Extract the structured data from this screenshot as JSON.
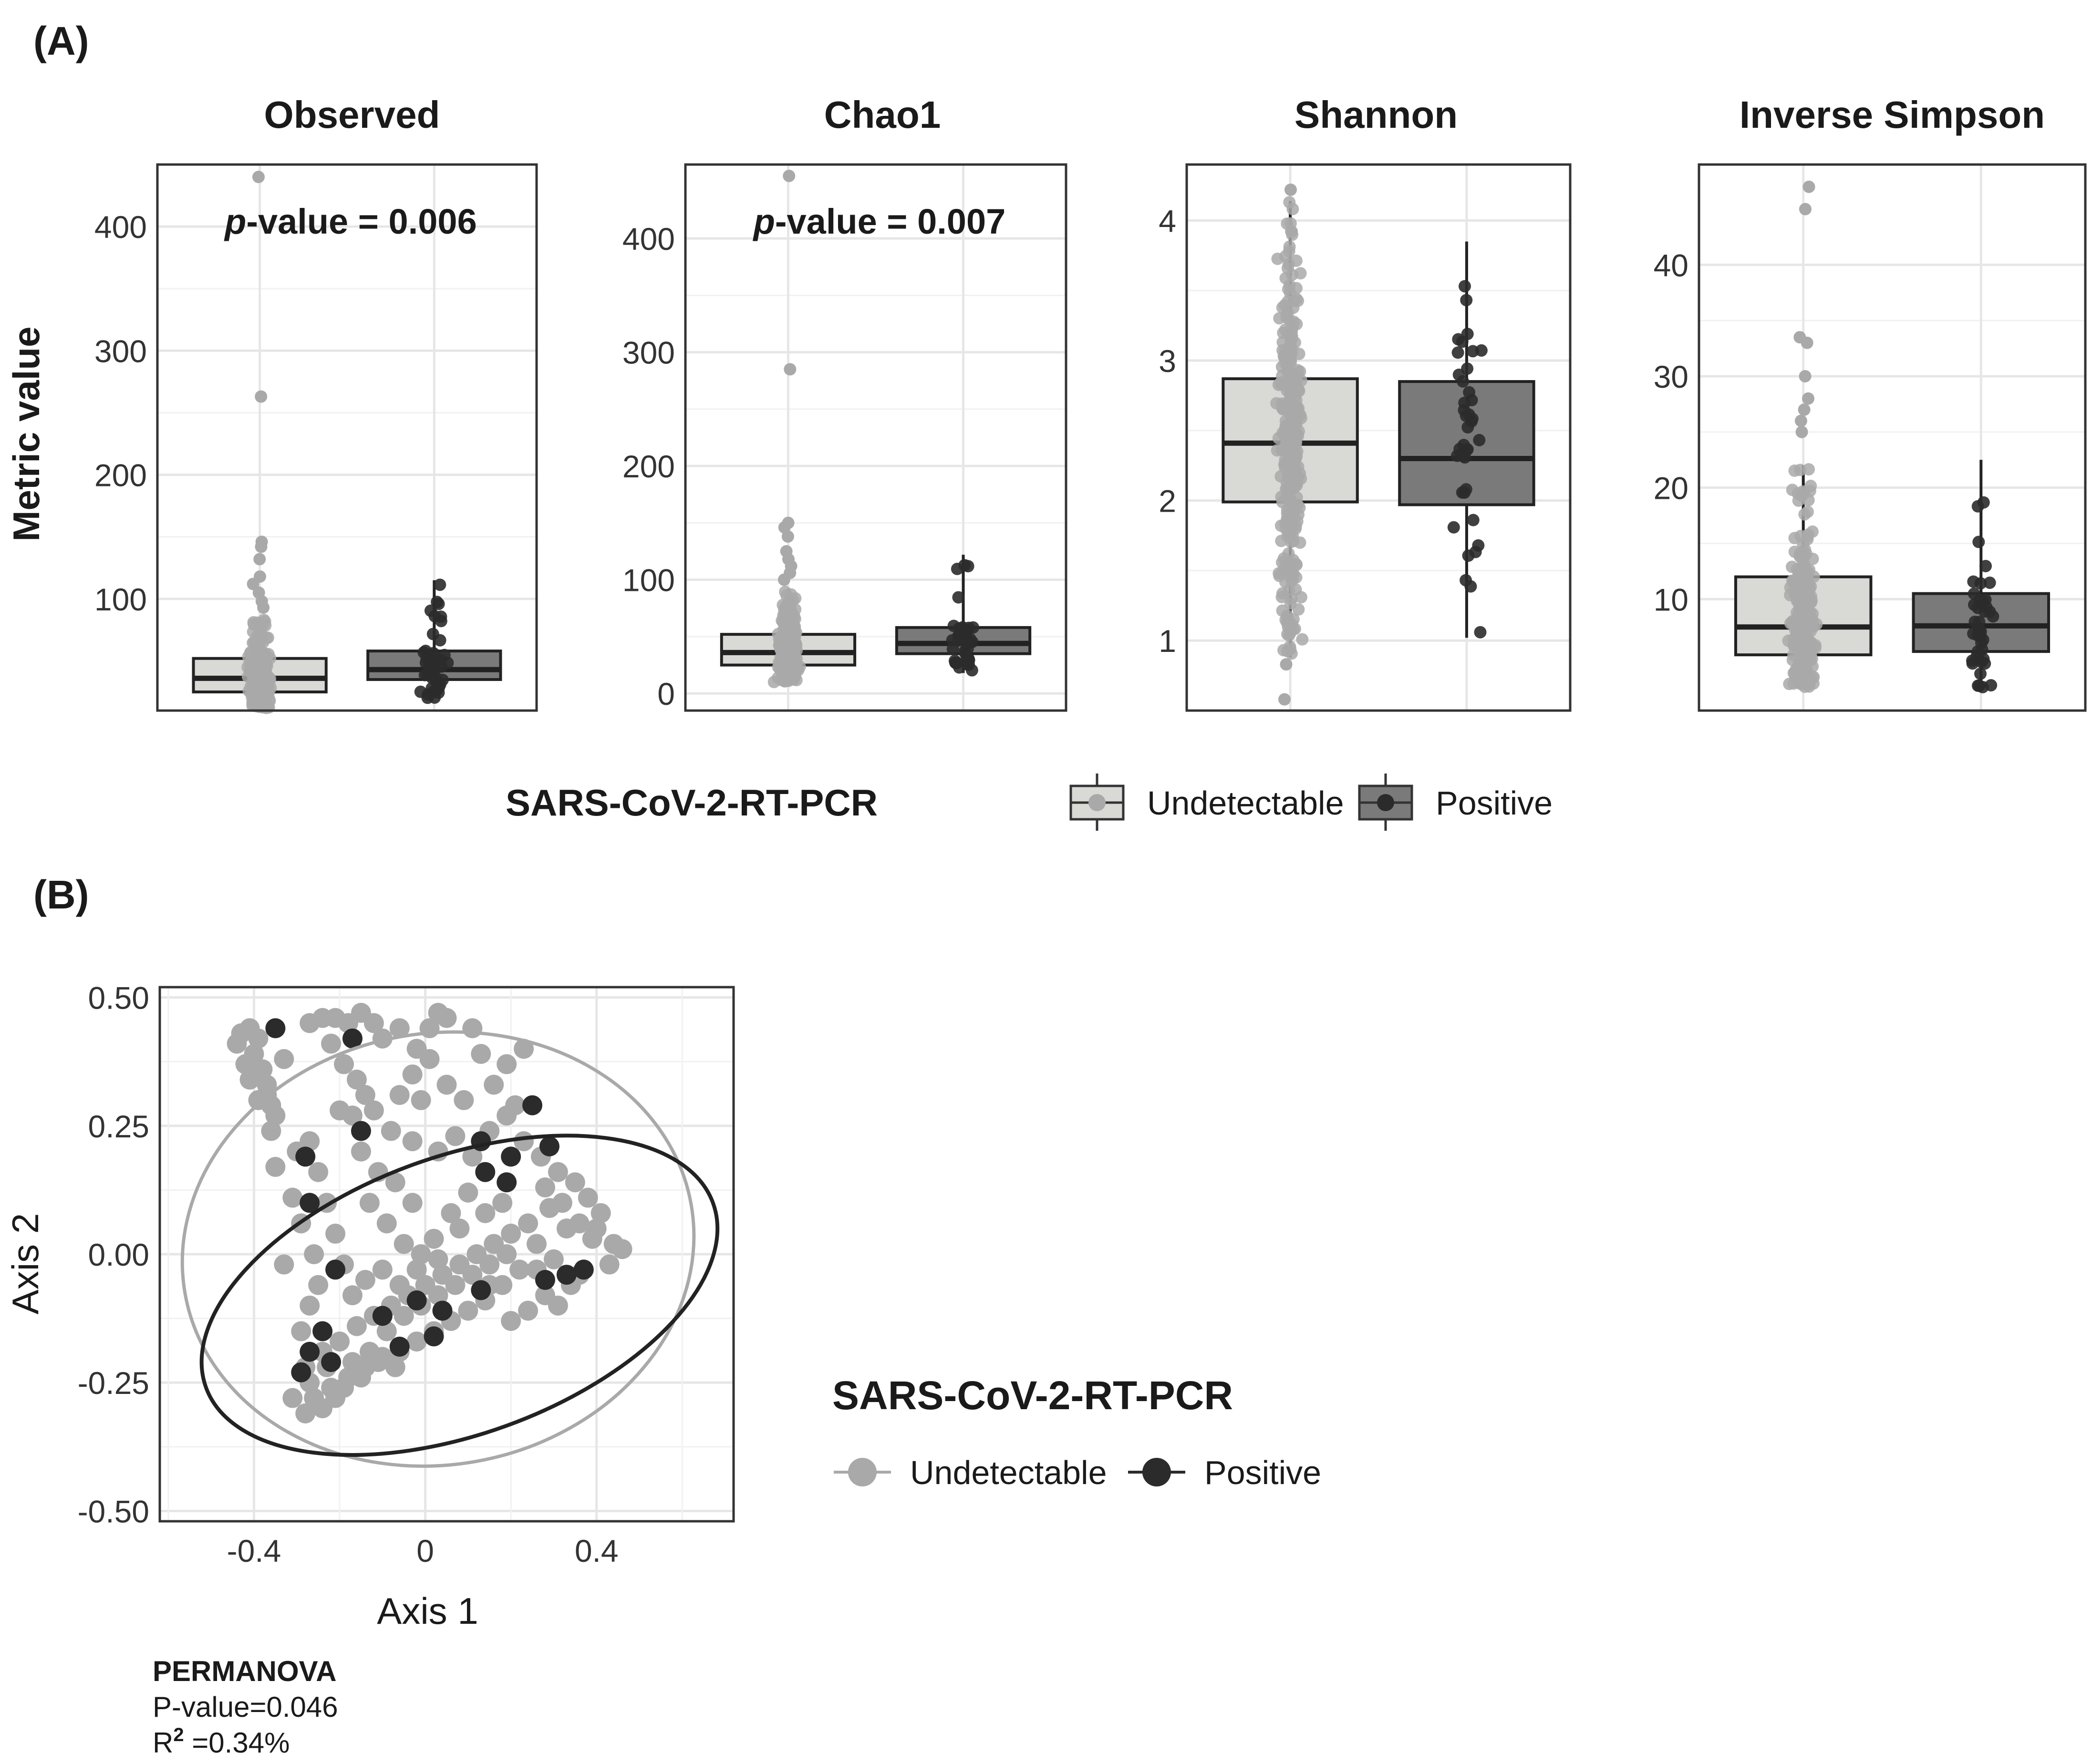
{
  "panel_labels": {
    "a": "(A)",
    "b": "(B)"
  },
  "colors": {
    "undetectable_fill": "#d9d9d6",
    "undetectable_point": "#a9a9a9",
    "positive_fill": "#7a7a7a",
    "positive_point": "#2b2b2b",
    "grid": "#e6e6e6",
    "frame": "#333333"
  },
  "legend_a": {
    "title": "SARS-CoV-2-RT-PCR",
    "items": [
      "Undetectable",
      "Positive"
    ]
  },
  "legend_b": {
    "title": "SARS-CoV-2-RT-PCR",
    "items": [
      "Undetectable",
      "Positive"
    ]
  },
  "permanova": {
    "title": "PERMANOVA",
    "pvalue": "P-value=0.046",
    "r2_base": "R",
    "r2_sup": "2",
    "r2_value": " =0.34%"
  },
  "chart_data": [
    {
      "type": "box",
      "title": "Observed",
      "ylabel": "Metric value",
      "annotation": {
        "italic": "p",
        "rest": "-value = 0.006"
      },
      "ylim": [
        10,
        450
      ],
      "yticks": [
        100,
        200,
        300,
        400
      ],
      "ytick_labels": [
        "100",
        "200",
        "300",
        "400"
      ],
      "groups": [
        {
          "name": "Undetectable",
          "q1": 25,
          "median": 36,
          "q3": 52,
          "whisker_low": 12,
          "whisker_high": 85,
          "n_points": 260,
          "outliers": [
            440,
            263,
            146,
            142,
            132,
            118,
            112,
            105,
            98,
            93
          ]
        },
        {
          "name": "Positive",
          "q1": 35,
          "median": 43,
          "q3": 58,
          "whisker_low": 20,
          "whisker_high": 115,
          "n_points": 40,
          "outliers": []
        }
      ]
    },
    {
      "type": "box",
      "title": "Chao1",
      "annotation": {
        "italic": "p",
        "rest": "-value = 0.007"
      },
      "ylim": [
        -15,
        465
      ],
      "yticks": [
        0,
        100,
        200,
        300,
        400
      ],
      "ytick_labels": [
        "0",
        "100",
        "200",
        "300",
        "400"
      ],
      "groups": [
        {
          "name": "Undetectable",
          "q1": 25,
          "median": 36,
          "q3": 52,
          "whisker_low": 10,
          "whisker_high": 92,
          "n_points": 260,
          "outliers": [
            455,
            285,
            150,
            146,
            138,
            125,
            118,
            112,
            106,
            100
          ]
        },
        {
          "name": "Positive",
          "q1": 35,
          "median": 44,
          "q3": 58,
          "whisker_low": 18,
          "whisker_high": 122,
          "n_points": 40,
          "outliers": []
        }
      ]
    },
    {
      "type": "box",
      "title": "Shannon",
      "ylim": [
        0.5,
        4.4
      ],
      "yticks": [
        1,
        2,
        3,
        4
      ],
      "ytick_labels": [
        "1",
        "2",
        "3",
        "4"
      ],
      "groups": [
        {
          "name": "Undetectable",
          "q1": 1.99,
          "median": 2.41,
          "q3": 2.87,
          "whisker_low": 0.88,
          "whisker_high": 4.14,
          "n_points": 320,
          "outliers": [
            0.83,
            0.58,
            4.22
          ]
        },
        {
          "name": "Positive",
          "q1": 1.97,
          "median": 2.3,
          "q3": 2.85,
          "whisker_low": 1.02,
          "whisker_high": 3.85,
          "n_points": 40,
          "outliers": []
        }
      ]
    },
    {
      "type": "box",
      "title": "Inverse Simpson",
      "ylim": [
        0,
        49
      ],
      "yticks": [
        10,
        20,
        30,
        40
      ],
      "ytick_labels": [
        "10",
        "20",
        "30",
        "40"
      ],
      "groups": [
        {
          "name": "Undetectable",
          "q1": 5,
          "median": 7.5,
          "q3": 12,
          "whisker_low": 2,
          "whisker_high": 22,
          "n_points": 250,
          "outliers": [
            47,
            45,
            33.5,
            33,
            30,
            28,
            27,
            26,
            25
          ]
        },
        {
          "name": "Positive",
          "q1": 5.3,
          "median": 7.6,
          "q3": 10.5,
          "whisker_low": 2,
          "whisker_high": 22.5,
          "n_points": 40,
          "outliers": []
        }
      ]
    },
    {
      "type": "scatter",
      "xlabel": "Axis 1",
      "ylabel": "Axis 2",
      "xlim": [
        -0.62,
        0.72
      ],
      "ylim": [
        -0.52,
        0.52
      ],
      "xticks": [
        -0.4,
        0,
        0.4
      ],
      "xtick_labels": [
        "-0.4",
        "0",
        "0.4"
      ],
      "yticks": [
        -0.5,
        -0.25,
        0,
        0.25,
        0.5
      ],
      "ytick_labels": [
        "-0.50",
        "-0.25",
        "0.00",
        "0.25",
        "0.50"
      ],
      "ellipses": [
        {
          "series": "Undetectable",
          "cx": 0.03,
          "cy": 0.01,
          "rx": 0.6,
          "ry": 0.42,
          "angle": 10
        },
        {
          "series": "Positive",
          "cx": 0.08,
          "cy": -0.08,
          "rx": 0.63,
          "ry": 0.27,
          "angle": 20
        }
      ],
      "series": [
        {
          "name": "Undetectable",
          "points": [
            [
              -0.43,
              0.43
            ],
            [
              -0.41,
              0.44
            ],
            [
              -0.39,
              0.42
            ],
            [
              -0.4,
              0.39
            ],
            [
              -0.38,
              0.36
            ],
            [
              -0.37,
              0.33
            ],
            [
              -0.36,
              0.29
            ],
            [
              -0.39,
              0.3
            ],
            [
              -0.42,
              0.37
            ],
            [
              -0.44,
              0.41
            ],
            [
              -0.35,
              0.27
            ],
            [
              -0.37,
              0.31
            ],
            [
              -0.41,
              0.34
            ],
            [
              -0.27,
              0.45
            ],
            [
              -0.24,
              0.46
            ],
            [
              -0.21,
              0.46
            ],
            [
              -0.18,
              0.45
            ],
            [
              -0.15,
              0.47
            ],
            [
              -0.12,
              0.45
            ],
            [
              -0.22,
              0.41
            ],
            [
              -0.19,
              0.37
            ],
            [
              -0.16,
              0.34
            ],
            [
              -0.14,
              0.31
            ],
            [
              -0.12,
              0.28
            ],
            [
              -0.17,
              0.27
            ],
            [
              -0.1,
              0.42
            ],
            [
              -0.06,
              0.44
            ],
            [
              -0.02,
              0.4
            ],
            [
              0.01,
              0.44
            ],
            [
              0.03,
              0.47
            ],
            [
              0.05,
              0.46
            ],
            [
              0.01,
              0.38
            ],
            [
              -0.03,
              0.35
            ],
            [
              0.11,
              0.44
            ],
            [
              0.13,
              0.39
            ],
            [
              0.19,
              0.37
            ],
            [
              0.23,
              0.4
            ],
            [
              0.16,
              0.33
            ],
            [
              0.21,
              0.29
            ],
            [
              -0.06,
              0.31
            ],
            [
              -0.01,
              0.3
            ],
            [
              -0.08,
              0.24
            ],
            [
              -0.03,
              0.22
            ],
            [
              0.03,
              0.2
            ],
            [
              0.07,
              0.23
            ],
            [
              0.11,
              0.19
            ],
            [
              0.15,
              0.24
            ],
            [
              0.19,
              0.27
            ],
            [
              0.23,
              0.22
            ],
            [
              0.27,
              0.19
            ],
            [
              0.31,
              0.16
            ],
            [
              0.35,
              0.14
            ],
            [
              0.38,
              0.11
            ],
            [
              0.41,
              0.08
            ],
            [
              0.39,
              0.03
            ],
            [
              0.44,
              0.02
            ],
            [
              0.46,
              0.01
            ],
            [
              0.43,
              -0.02
            ],
            [
              0.36,
              -0.04
            ],
            [
              0.33,
              0.05
            ],
            [
              0.29,
              0.09
            ],
            [
              0.26,
              0.02
            ],
            [
              0.22,
              -0.03
            ],
            [
              0.18,
              -0.06
            ],
            [
              0.14,
              -0.09
            ],
            [
              0.1,
              -0.11
            ],
            [
              0.06,
              -0.13
            ],
            [
              0.02,
              -0.15
            ],
            [
              -0.02,
              -0.17
            ],
            [
              -0.06,
              -0.19
            ],
            [
              -0.1,
              -0.2
            ],
            [
              -0.14,
              -0.22
            ],
            [
              -0.18,
              -0.24
            ],
            [
              -0.22,
              -0.26
            ],
            [
              -0.26,
              -0.28
            ],
            [
              -0.28,
              -0.22
            ],
            [
              -0.24,
              -0.19
            ],
            [
              -0.2,
              -0.17
            ],
            [
              -0.16,
              -0.14
            ],
            [
              -0.12,
              -0.12
            ],
            [
              -0.08,
              -0.1
            ],
            [
              -0.04,
              -0.08
            ],
            [
              0.0,
              -0.06
            ],
            [
              0.04,
              -0.04
            ],
            [
              0.08,
              -0.02
            ],
            [
              0.12,
              0.0
            ],
            [
              0.16,
              0.02
            ],
            [
              0.2,
              0.04
            ],
            [
              0.24,
              0.06
            ],
            [
              0.3,
              -0.01
            ],
            [
              0.34,
              -0.06
            ],
            [
              0.28,
              -0.08
            ],
            [
              0.24,
              -0.11
            ],
            [
              0.2,
              -0.13
            ],
            [
              -0.27,
              0.22
            ],
            [
              -0.25,
              0.16
            ],
            [
              -0.23,
              0.1
            ],
            [
              -0.21,
              0.04
            ],
            [
              -0.19,
              -0.02
            ],
            [
              -0.17,
              -0.08
            ],
            [
              -0.25,
              -0.06
            ],
            [
              -0.27,
              -0.1
            ],
            [
              -0.29,
              -0.15
            ],
            [
              -0.26,
              0.0
            ],
            [
              -0.29,
              0.06
            ],
            [
              -0.31,
              0.11
            ],
            [
              -0.35,
              0.17
            ],
            [
              -0.3,
              0.2
            ],
            [
              -0.33,
              -0.02
            ],
            [
              -0.31,
              -0.28
            ],
            [
              -0.28,
              -0.31
            ],
            [
              -0.24,
              -0.3
            ],
            [
              -0.27,
              -0.25
            ],
            [
              -0.21,
              -0.28
            ],
            [
              -0.17,
              -0.21
            ],
            [
              -0.13,
              -0.19
            ],
            [
              -0.09,
              -0.15
            ],
            [
              -0.05,
              -0.12
            ],
            [
              -0.01,
              -0.1
            ],
            [
              0.03,
              -0.08
            ],
            [
              0.07,
              -0.06
            ],
            [
              0.11,
              -0.04
            ],
            [
              0.15,
              -0.02
            ],
            [
              0.19,
              0.0
            ],
            [
              -0.13,
              0.1
            ],
            [
              -0.09,
              0.06
            ],
            [
              -0.05,
              0.02
            ],
            [
              -0.01,
              0.0
            ],
            [
              0.03,
              -0.01
            ],
            [
              0.08,
              0.05
            ],
            [
              -0.11,
              0.16
            ],
            [
              -0.07,
              0.14
            ],
            [
              -0.03,
              0.1
            ],
            [
              0.1,
              0.12
            ],
            [
              0.14,
              0.08
            ],
            [
              0.18,
              0.1
            ],
            [
              0.28,
              0.13
            ],
            [
              0.32,
              0.1
            ],
            [
              0.36,
              0.06
            ],
            [
              0.4,
              0.05
            ],
            [
              -0.14,
              -0.05
            ],
            [
              -0.1,
              -0.03
            ],
            [
              -0.06,
              -0.06
            ],
            [
              -0.02,
              -0.03
            ],
            [
              0.02,
              0.03
            ],
            [
              0.06,
              0.08
            ],
            [
              -0.2,
              0.28
            ],
            [
              -0.15,
              0.2
            ],
            [
              0.05,
              0.33
            ],
            [
              0.09,
              0.3
            ],
            [
              -0.36,
              0.24
            ],
            [
              -0.33,
              0.38
            ],
            [
              0.15,
              -0.06
            ],
            [
              0.26,
              -0.03
            ],
            [
              0.31,
              -0.1
            ],
            [
              -0.23,
              -0.22
            ],
            [
              -0.19,
              -0.26
            ],
            [
              -0.15,
              -0.24
            ],
            [
              -0.11,
              -0.21
            ],
            [
              -0.07,
              -0.22
            ]
          ]
        },
        {
          "name": "Positive",
          "points": [
            [
              -0.35,
              0.44
            ],
            [
              -0.17,
              0.42
            ],
            [
              -0.28,
              0.19
            ],
            [
              -0.27,
              0.1
            ],
            [
              -0.15,
              0.24
            ],
            [
              0.13,
              0.22
            ],
            [
              0.2,
              0.19
            ],
            [
              0.25,
              0.29
            ],
            [
              0.29,
              0.21
            ],
            [
              -0.21,
              -0.03
            ],
            [
              -0.24,
              -0.15
            ],
            [
              -0.27,
              -0.19
            ],
            [
              -0.29,
              -0.23
            ],
            [
              -0.22,
              -0.21
            ],
            [
              -0.02,
              -0.09
            ],
            [
              0.04,
              -0.11
            ],
            [
              0.13,
              -0.07
            ],
            [
              -0.1,
              -0.12
            ],
            [
              -0.06,
              -0.18
            ],
            [
              0.02,
              -0.16
            ],
            [
              0.33,
              -0.04
            ],
            [
              0.37,
              -0.03
            ],
            [
              0.28,
              -0.05
            ],
            [
              0.14,
              0.16
            ],
            [
              0.19,
              0.14
            ]
          ]
        }
      ]
    }
  ]
}
